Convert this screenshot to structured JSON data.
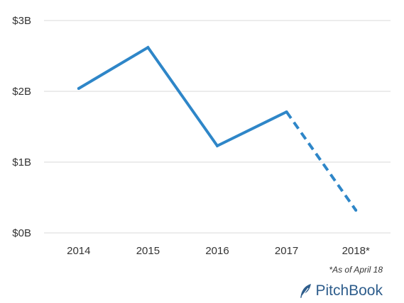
{
  "chart_data": {
    "type": "line",
    "categories": [
      "2014",
      "2015",
      "2016",
      "2017",
      "2018*"
    ],
    "values": [
      2.04,
      2.62,
      1.23,
      1.71,
      0.32
    ],
    "projected_from_index": 3,
    "title": "",
    "xlabel": "",
    "ylabel": "",
    "ylim": [
      0,
      3
    ],
    "yticks": [
      0,
      1,
      2,
      3
    ],
    "ytick_labels": [
      "$0B",
      "$1B",
      "$2B",
      "$3B"
    ],
    "grid": true,
    "line_color": "#2e86c8"
  },
  "footnote": "*As of April 18",
  "brand": {
    "name": "PitchBook",
    "icon": "feather-icon",
    "color": "#2e5d8c"
  }
}
